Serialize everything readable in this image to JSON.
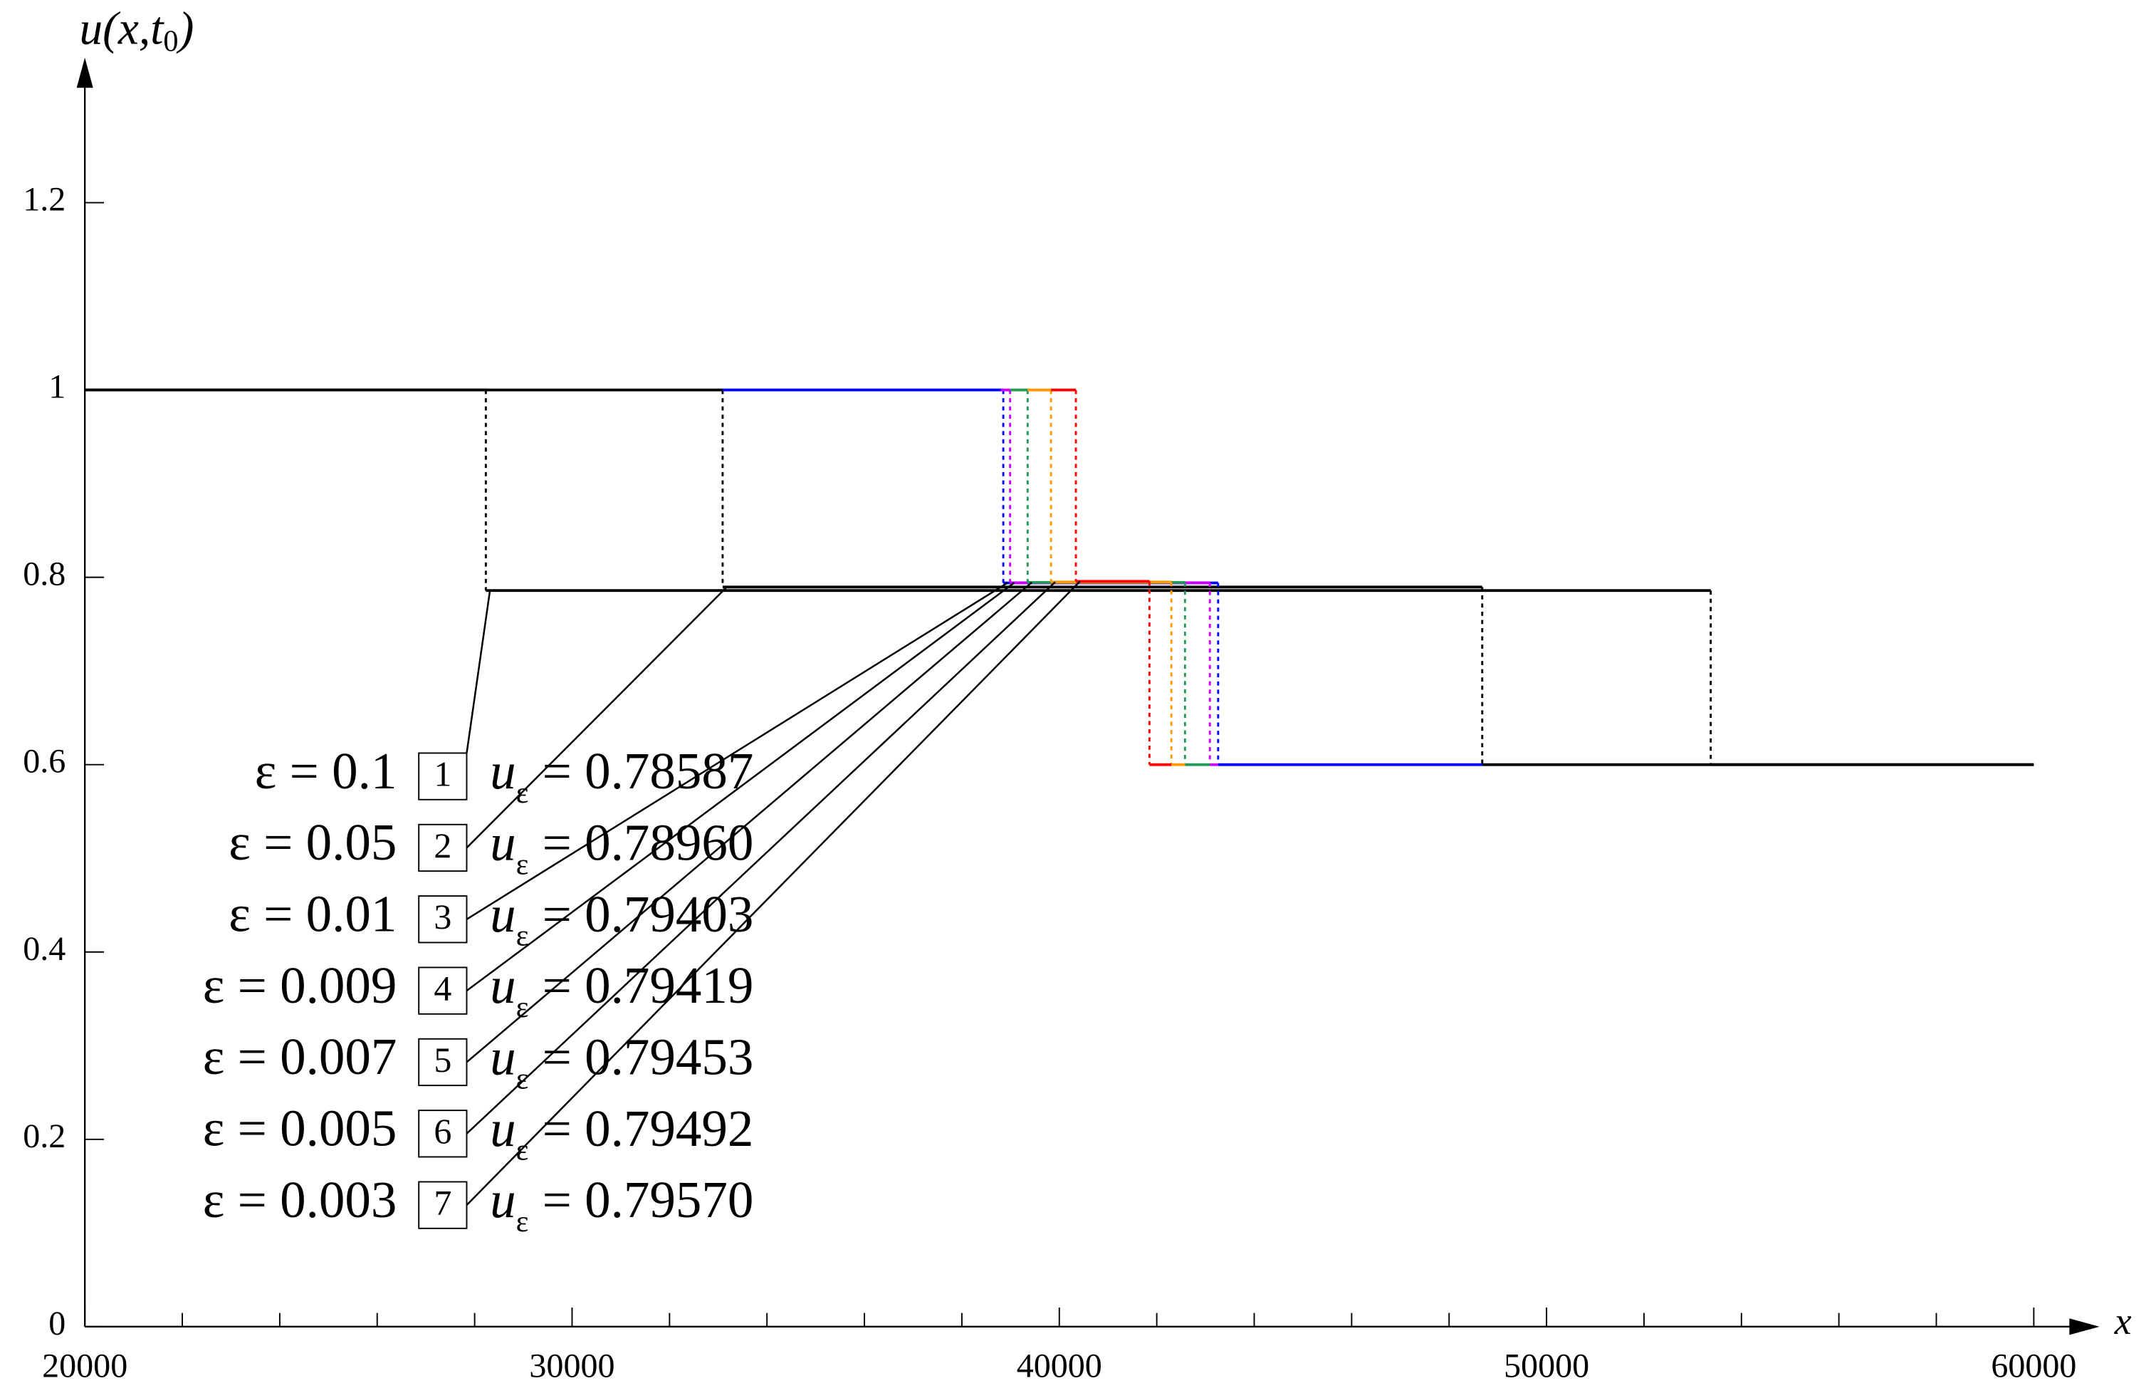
{
  "chart_data": {
    "type": "step",
    "xlabel": "x",
    "ylabel": {
      "main": "u(x,t",
      "sub": "0",
      "end": ")"
    },
    "xlim": [
      20000,
      60000
    ],
    "ylim": [
      0,
      1.3
    ],
    "xticks": [
      20000,
      30000,
      40000,
      50000,
      60000
    ],
    "xminorticks": [
      22000,
      24000,
      26000,
      28000,
      32000,
      34000,
      36000,
      38000,
      42000,
      44000,
      46000,
      48000,
      52000,
      54000,
      56000,
      58000
    ],
    "yticks": [
      0,
      0.2,
      0.4,
      0.6,
      0.8,
      1,
      1.2
    ],
    "series": [
      {
        "name": "1",
        "color": "#000000",
        "x": [
          20000,
          28230,
          28230,
          53370,
          53370,
          60000
        ],
        "values": [
          1,
          1,
          0.78587,
          0.78587,
          0.6,
          0.6
        ]
      },
      {
        "name": "2",
        "color": "#000000",
        "x": [
          20000,
          33090,
          33090,
          48680,
          48680,
          60000
        ],
        "values": [
          1,
          1,
          0.7896,
          0.7896,
          0.6,
          0.6
        ]
      },
      {
        "name": "3",
        "color": "#0000ff",
        "x": [
          33090,
          38850,
          38850,
          43260,
          43260,
          48680
        ],
        "values": [
          1,
          1,
          0.79403,
          0.79403,
          0.6,
          0.6
        ]
      },
      {
        "name": "4",
        "color": "#cc00ff",
        "x": [
          38800,
          38990,
          38990,
          43090,
          43090,
          43260
        ],
        "values": [
          1,
          1,
          0.79419,
          0.79419,
          0.6,
          0.6
        ]
      },
      {
        "name": "5",
        "color": "#229955",
        "x": [
          38990,
          39350,
          39350,
          42580,
          42580,
          43090
        ],
        "values": [
          1,
          1,
          0.79453,
          0.79453,
          0.6,
          0.6
        ]
      },
      {
        "name": "6",
        "color": "#ff9900",
        "x": [
          39350,
          39830,
          39830,
          42300,
          42300,
          42580
        ],
        "values": [
          1,
          1,
          0.79492,
          0.79492,
          0.6,
          0.6
        ]
      },
      {
        "name": "7",
        "color": "#ff0000",
        "x": [
          39830,
          40340,
          40340,
          41850,
          41850,
          42300
        ],
        "values": [
          1,
          1,
          0.7957,
          0.7957,
          0.6,
          0.6
        ]
      }
    ],
    "legend": [
      {
        "epsilon": "ε = 0.1",
        "number": "1",
        "u": "u",
        "sub": "ε",
        "value": "= 0.78587"
      },
      {
        "epsilon": "ε = 0.05",
        "number": "2",
        "u": "u",
        "sub": "ε",
        "value": "= 0.78960"
      },
      {
        "epsilon": "ε = 0.01",
        "number": "3",
        "u": "u",
        "sub": "ε",
        "value": "= 0.79403"
      },
      {
        "epsilon": "ε = 0.009",
        "number": "4",
        "u": "u",
        "sub": "ε",
        "value": "= 0.79419"
      },
      {
        "epsilon": "ε = 0.007",
        "number": "5",
        "u": "u",
        "sub": "ε",
        "value": "= 0.79453"
      },
      {
        "epsilon": "ε = 0.005",
        "number": "6",
        "u": "u",
        "sub": "ε",
        "value": "= 0.79492"
      },
      {
        "epsilon": "ε = 0.003",
        "number": "7",
        "u": "u",
        "sub": "ε",
        "value": "= 0.79570"
      }
    ]
  }
}
